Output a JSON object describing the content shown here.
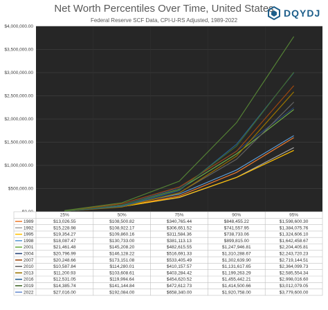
{
  "header": {
    "title": "Net Worth Percentiles Over Time, United States",
    "subtitle": "Federal Reserve SCF Data, CPI-U-RS Adjusted, 1989-2022",
    "logo_text": "DQYDJ"
  },
  "chart_data": {
    "type": "line",
    "title": "Net Worth Percentiles Over Time, United States",
    "subtitle": "Federal Reserve SCF Data, CPI-U-RS Adjusted, 1989-2022",
    "categories": [
      "25%",
      "50%",
      "75%",
      "90%",
      "95%"
    ],
    "y_ticks": [
      "$0.00",
      "$500,000.00",
      "$1,000,000.00",
      "$1,500,000.00",
      "$2,000,000.00",
      "$2,500,000.00",
      "$3,000,000.00",
      "$3,500,000.00",
      "$4,000,000.00"
    ],
    "ylim": [
      0,
      4000000
    ],
    "grid": true,
    "plot_background": "#262626",
    "legend": "data-table below axis",
    "series": [
      {
        "name": "1989",
        "color": "#ED7D31",
        "values": [
          13026.55,
          108500.82,
          340765.44,
          848455.22,
          1598600.3
        ],
        "labels": [
          "$13,026.55",
          "$108,500.82",
          "$340,765.44",
          "$848,455.22",
          "$1,598,600.30"
        ]
      },
      {
        "name": "1992",
        "color": "#A5A5A5",
        "values": [
          15228.98,
          108922.17,
          306651.52,
          741557.95,
          1384075.76
        ],
        "labels": [
          "$15,228.98",
          "$108,922.17",
          "$306,651.52",
          "$741,557.95",
          "$1,384,075.76"
        ]
      },
      {
        "name": "1995",
        "color": "#FFC000",
        "values": [
          19354.27,
          109860.16,
          311584.36,
          738733.06,
          1324606.1
        ],
        "labels": [
          "$19,354.27",
          "$109,860.16",
          "$311,584.36",
          "$738,733.06",
          "$1,324,606.10"
        ]
      },
      {
        "name": "1998",
        "color": "#5B9BD5",
        "values": [
          18087.47,
          130733.0,
          381113.13,
          899815.0,
          1642458.67
        ],
        "labels": [
          "$18,087.47",
          "$130,733.00",
          "$381,113.13",
          "$899,815.00",
          "$1,642,458.67"
        ]
      },
      {
        "name": "2001",
        "color": "#70AD47",
        "values": [
          21461.48,
          145208.2,
          482615.55,
          1247946.81,
          2204405.81
        ],
        "labels": [
          "$21,461.48",
          "$145,208.20",
          "$482,615.55",
          "$1,247,946.81",
          "$2,204,405.81"
        ]
      },
      {
        "name": "2004",
        "color": "#264478",
        "values": [
          20796.99,
          146128.22,
          516691.33,
          1310288.67,
          2243720.23
        ],
        "labels": [
          "$20,796.99",
          "$146,128.22",
          "$516,691.33",
          "$1,310,288.67",
          "$2,243,720.23"
        ]
      },
      {
        "name": "2007",
        "color": "#9E480E",
        "values": [
          20248.66,
          173151.08,
          533405.49,
          1302639.9,
          2719144.51
        ],
        "labels": [
          "$20,248.66",
          "$173,151.08",
          "$533,405.49",
          "$1,302,639.90",
          "$2,719,144.51"
        ]
      },
      {
        "name": "2010",
        "color": "#636363",
        "values": [
          10587.84,
          114280.01,
          410157.57,
          1131617.65,
          2364099.73
        ],
        "labels": [
          "$10,587.84",
          "$114,280.01",
          "$410,157.57",
          "$1,131,617.65",
          "$2,364,099.73"
        ]
      },
      {
        "name": "2013",
        "color": "#997300",
        "values": [
          11200.93,
          103608.61,
          403284.42,
          1199263.29,
          2585554.34
        ],
        "labels": [
          "$11,200.93",
          "$103,608.61",
          "$403,284.42",
          "$1,199,263.29",
          "$2,585,554.34"
        ]
      },
      {
        "name": "2016",
        "color": "#255E91",
        "values": [
          12531.05,
          119994.64,
          454620.52,
          1455442.21,
          2998016.6
        ],
        "labels": [
          "$12,531.05",
          "$119,994.64",
          "$454,620.52",
          "$1,455,442.21",
          "$2,998,016.60"
        ]
      },
      {
        "name": "2019",
        "color": "#43682B",
        "values": [
          14385.74,
          141144.84,
          472612.73,
          1414500.66,
          3012079.05
        ],
        "labels": [
          "$14,385.74",
          "$141,144.84",
          "$472,612.73",
          "$1,414,500.66",
          "$3,012,079.05"
        ]
      },
      {
        "name": "2022",
        "color": "#698ED0",
        "values": [
          27016.0,
          192084.0,
          658340.0,
          1920758.0,
          3779600.0
        ],
        "labels": [
          "$27,016.00",
          "$192,084.00",
          "$658,340.00",
          "$1,920,758.00",
          "$3,779,600.00"
        ],
        "line_color": "#548235"
      }
    ]
  }
}
